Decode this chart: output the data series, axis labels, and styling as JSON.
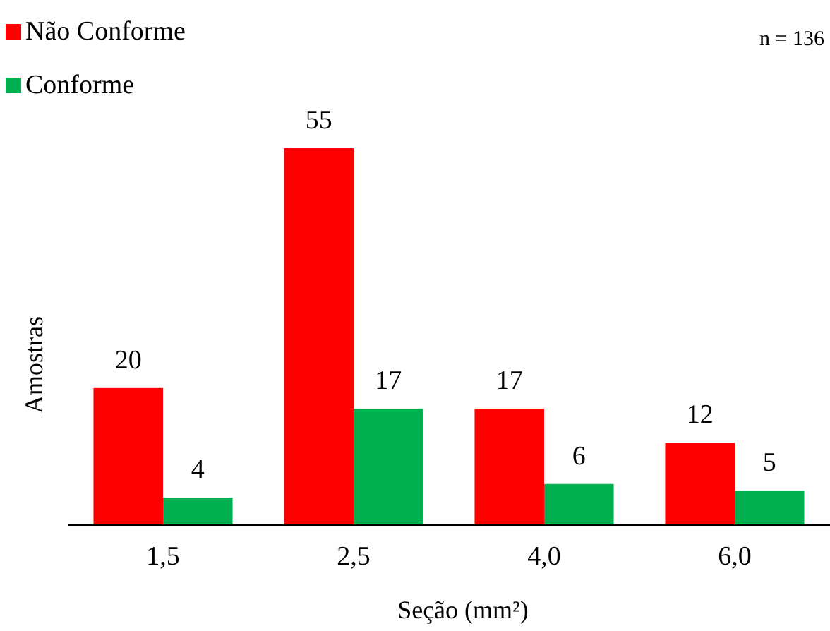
{
  "chart_data": {
    "type": "bar",
    "xlabel": "Seção (mm²)",
    "ylabel": "Amostras",
    "categories": [
      "1,5",
      "2,5",
      "4,0",
      "6,0"
    ],
    "series": [
      {
        "name": "Não Conforme",
        "color": "#ff0000",
        "values": [
          20,
          55,
          17,
          12
        ]
      },
      {
        "name": "Conforme",
        "color": "#00b050",
        "values": [
          4,
          17,
          6,
          5
        ]
      }
    ],
    "data_labels": true,
    "legend": "top left",
    "annotations": [
      "n = 136"
    ]
  }
}
